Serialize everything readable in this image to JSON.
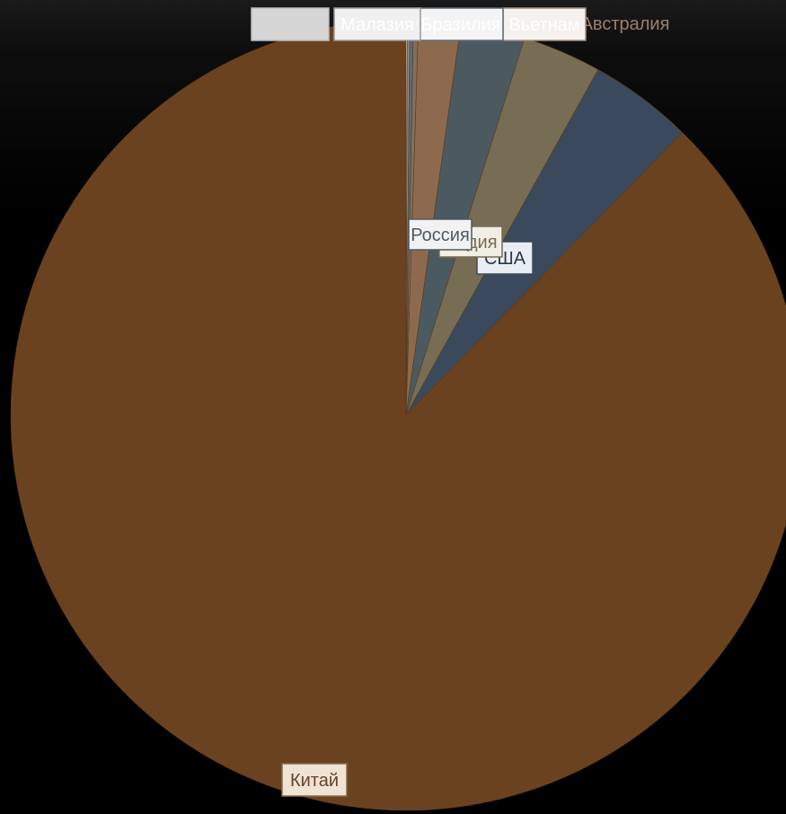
{
  "chart_data": {
    "type": "pie",
    "title": "",
    "slices": [
      {
        "label": "Китай",
        "value": 86.8,
        "color": "#6b4220"
      },
      {
        "label": "США",
        "value": 4.2,
        "color": "#3a4a5c"
      },
      {
        "label": "Индия",
        "value": 3.2,
        "color": "#776c54"
      },
      {
        "label": "Россия",
        "value": 2.6,
        "color": "#4b5a60"
      },
      {
        "label": "Австралия",
        "value": 1.7,
        "color": "#8d6a4e"
      },
      {
        "label": "Вьетнам",
        "value": 0.2,
        "color": "#7f6f60"
      },
      {
        "label": "Бразилия",
        "value": 0.15,
        "color": "#5d6a74"
      },
      {
        "label": "Малазия",
        "value": 0.1,
        "color": "#8f8f8f"
      },
      {
        "label": "",
        "value": 0.05,
        "color": "#cfcfcf"
      }
    ],
    "legend": "none",
    "data_labels": true
  }
}
